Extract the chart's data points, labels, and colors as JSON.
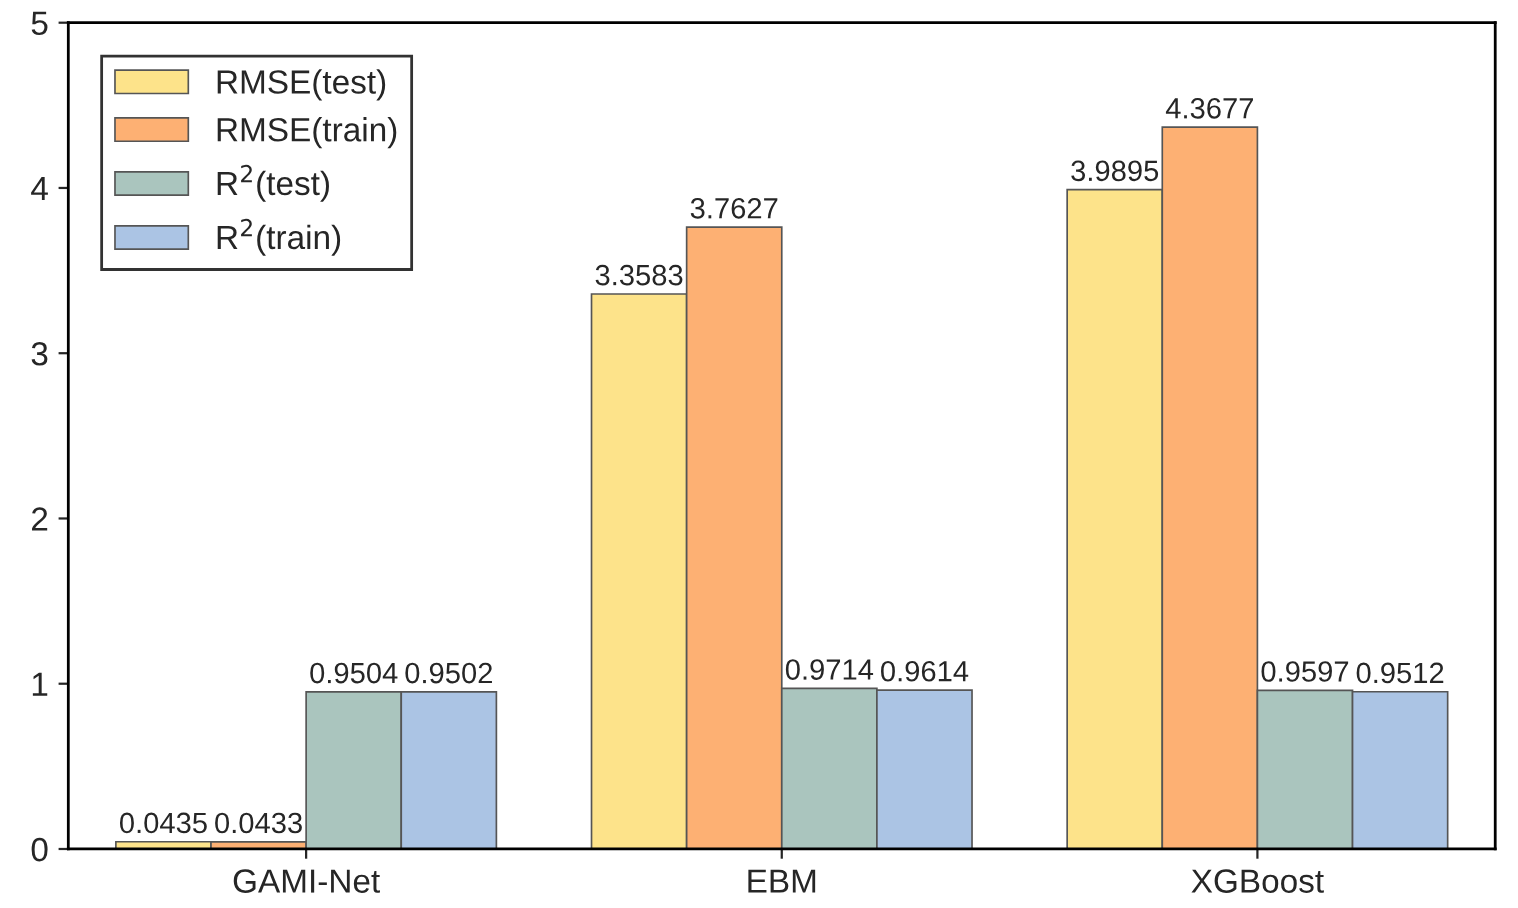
{
  "chart_data": {
    "type": "bar",
    "categories": [
      "GAMI-Net",
      "EBM",
      "XGBoost"
    ],
    "series": [
      {
        "name": "RMSE(test)",
        "color": "#fde38a",
        "values": [
          0.0435,
          3.3583,
          3.9895
        ]
      },
      {
        "name": "RMSE(train)",
        "color": "#fdb073",
        "values": [
          0.0433,
          3.7627,
          4.3677
        ]
      },
      {
        "name": "R$^{2}$(test)",
        "color": "#aac5be",
        "values": [
          0.9504,
          0.9714,
          0.9597
        ]
      },
      {
        "name": "R$^{2}$(train)",
        "color": "#abc4e4",
        "values": [
          0.9502,
          0.9614,
          0.9512
        ]
      }
    ],
    "ylim": [
      0,
      5
    ],
    "yticks": [
      0,
      1,
      2,
      3,
      4,
      5
    ],
    "data_labels": true,
    "legend": "top left",
    "grid": false
  }
}
